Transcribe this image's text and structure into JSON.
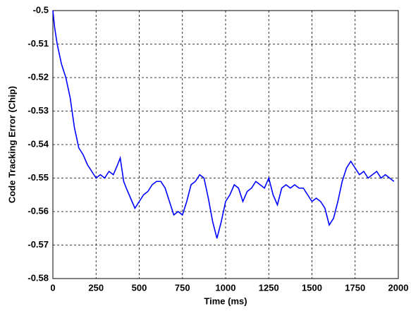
{
  "chart_data": {
    "type": "line",
    "x_label": "Time (ms)",
    "y_label": "Code Tracking Error (Chip)",
    "x": [
      0,
      10,
      25,
      50,
      75,
      100,
      125,
      150,
      175,
      200,
      225,
      250,
      275,
      300,
      325,
      350,
      375,
      390,
      410,
      425,
      450,
      475,
      500,
      525,
      550,
      575,
      600,
      625,
      650,
      675,
      700,
      725,
      750,
      775,
      800,
      825,
      850,
      875,
      900,
      925,
      950,
      975,
      1000,
      1025,
      1050,
      1075,
      1100,
      1125,
      1150,
      1175,
      1200,
      1225,
      1250,
      1275,
      1300,
      1325,
      1350,
      1375,
      1400,
      1425,
      1450,
      1475,
      1500,
      1525,
      1550,
      1575,
      1600,
      1625,
      1650,
      1675,
      1700,
      1725,
      1750,
      1775,
      1800,
      1825,
      1850,
      1875,
      1900,
      1925,
      1950,
      1975
    ],
    "values": [
      -0.5,
      -0.505,
      -0.51,
      -0.516,
      -0.52,
      -0.526,
      -0.535,
      -0.541,
      -0.543,
      -0.546,
      -0.548,
      -0.55,
      -0.549,
      -0.55,
      -0.548,
      -0.549,
      -0.546,
      -0.544,
      -0.551,
      -0.553,
      -0.556,
      -0.559,
      -0.557,
      -0.555,
      -0.554,
      -0.552,
      -0.551,
      -0.551,
      -0.553,
      -0.557,
      -0.561,
      -0.56,
      -0.561,
      -0.557,
      -0.552,
      -0.551,
      -0.549,
      -0.55,
      -0.556,
      -0.563,
      -0.568,
      -0.563,
      -0.557,
      -0.555,
      -0.552,
      -0.553,
      -0.557,
      -0.554,
      -0.553,
      -0.551,
      -0.552,
      -0.553,
      -0.55,
      -0.555,
      -0.558,
      -0.553,
      -0.552,
      -0.553,
      -0.552,
      -0.553,
      -0.553,
      -0.555,
      -0.557,
      -0.556,
      -0.557,
      -0.559,
      -0.564,
      -0.562,
      -0.557,
      -0.551,
      -0.547,
      -0.545,
      -0.547,
      -0.549,
      -0.548,
      -0.55,
      -0.549,
      -0.548,
      -0.55,
      -0.549,
      -0.55,
      -0.551
    ],
    "color": "#0000ff",
    "xlim": [
      0,
      2000
    ],
    "xticks": [
      0,
      250,
      500,
      750,
      1000,
      1250,
      1500,
      1750,
      2000
    ],
    "ylim": [
      -0.58,
      -0.5
    ],
    "yticks": [
      -0.58,
      -0.57,
      -0.56,
      -0.55,
      -0.54,
      -0.53,
      -0.52,
      -0.51,
      -0.5
    ],
    "grid": true
  }
}
